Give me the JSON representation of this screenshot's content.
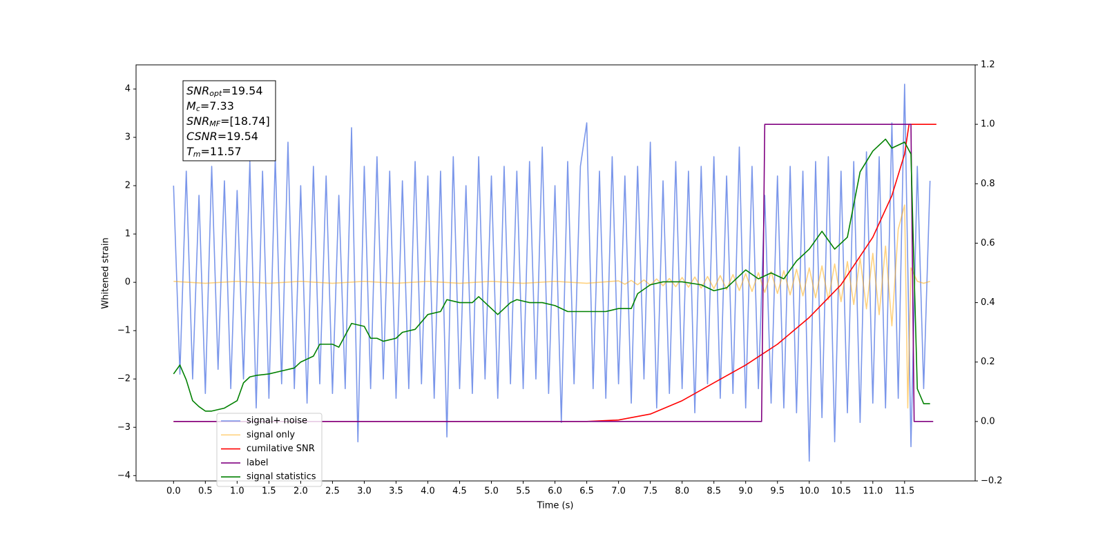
{
  "chart_data": {
    "type": "line",
    "x_label": "Time (s)",
    "y_label": "Whitened strain",
    "xlim": [
      -0.59,
      12.61
    ],
    "ylim": [
      -4.11,
      4.5
    ],
    "y2lim": [
      -0.2,
      1.2
    ],
    "xticks": [
      {
        "value": 0,
        "label": "0.0"
      },
      0.5,
      {
        "value": 1,
        "label": "1.0"
      },
      1.5,
      {
        "value": 2,
        "label": "2.0"
      },
      2.5,
      {
        "value": 3,
        "label": "3.0"
      },
      3.5,
      {
        "value": 4,
        "label": "4.0"
      },
      4.5,
      {
        "value": 5,
        "label": "5.0"
      },
      5.5,
      {
        "value": 6,
        "label": "6.0"
      },
      6.5,
      {
        "value": 7,
        "label": "7.0"
      },
      7.5,
      {
        "value": 8,
        "label": "8.0"
      },
      8.5,
      {
        "value": 9,
        "label": "9.0"
      },
      9.5,
      {
        "value": 10,
        "label": "10.0"
      },
      10.5,
      {
        "value": 11,
        "label": "11.0"
      },
      11.5
    ],
    "yticks": [
      {
        "value": -4,
        "label": "−4"
      },
      {
        "value": -3,
        "label": "−3"
      },
      {
        "value": -2,
        "label": "−2"
      },
      {
        "value": -1,
        "label": "−1"
      },
      0,
      1,
      2,
      3,
      4
    ],
    "y2ticks": [
      {
        "value": -0.2,
        "label": "−0.2"
      },
      {
        "value": 0,
        "label": "0.0"
      },
      0.2,
      0.4,
      0.6,
      0.8,
      {
        "value": 1,
        "label": "1.0"
      },
      1.2
    ],
    "legend": "lower left",
    "annotations": [
      {
        "main": "SNR",
        "sub": "opt",
        "rest": "=19.54"
      },
      {
        "main": "M",
        "sub": "c",
        "rest": "=7.33"
      },
      {
        "main": "SNR",
        "sub": "MF",
        "rest": "=[18.74]"
      },
      {
        "main": "CSNR",
        "sub": "",
        "rest": "=19.54"
      },
      {
        "main": "T",
        "sub": "m",
        "rest": "=11.57"
      }
    ],
    "series": [
      {
        "name": "signal+ noise",
        "color": "#4169e1",
        "alpha": 0.7,
        "x": [
          0,
          0.1,
          0.2,
          0.3,
          0.4,
          0.5,
          0.6,
          0.7,
          0.8,
          0.9,
          1,
          1.1,
          1.2,
          1.3,
          1.4,
          1.5,
          1.6,
          1.7,
          1.8,
          1.9,
          2,
          2.1,
          2.2,
          2.3,
          2.4,
          2.5,
          2.6,
          2.7,
          2.8,
          2.9,
          3,
          3.1,
          3.2,
          3.3,
          3.4,
          3.5,
          3.6,
          3.7,
          3.8,
          3.9,
          4,
          4.1,
          4.2,
          4.3,
          4.4,
          4.5,
          4.6,
          4.7,
          4.8,
          4.9,
          5,
          5.1,
          5.2,
          5.3,
          5.4,
          5.5,
          5.6,
          5.7,
          5.8,
          5.9,
          6,
          6.1,
          6.2,
          6.3,
          6.4,
          6.5,
          6.6,
          6.7,
          6.8,
          6.9,
          7,
          7.1,
          7.2,
          7.3,
          7.4,
          7.5,
          7.6,
          7.7,
          7.8,
          7.9,
          8,
          8.1,
          8.2,
          8.3,
          8.4,
          8.5,
          8.6,
          8.7,
          8.8,
          8.9,
          9,
          9.1,
          9.2,
          9.3,
          9.4,
          9.5,
          9.6,
          9.7,
          9.8,
          9.9,
          10,
          10.1,
          10.2,
          10.3,
          10.4,
          10.5,
          10.6,
          10.7,
          10.8,
          10.9,
          11,
          11.1,
          11.2,
          11.3,
          11.4,
          11.5,
          11.6,
          11.7,
          11.8,
          11.9
        ],
        "values": [
          2.0,
          -1.9,
          2.3,
          -2.0,
          1.8,
          -2.3,
          2.4,
          -1.8,
          2.1,
          -2.2,
          1.9,
          -2.0,
          2.5,
          -2.6,
          2.3,
          -2.4,
          2.6,
          -2.1,
          2.9,
          -2.2,
          2.0,
          -2.5,
          2.4,
          -2.1,
          2.2,
          -2.3,
          1.8,
          -2.2,
          3.2,
          -3.3,
          2.4,
          -2.2,
          2.6,
          -2.0,
          2.3,
          -2.4,
          2.1,
          -2.2,
          2.5,
          -2.1,
          2.2,
          -2.4,
          2.3,
          -3.2,
          2.6,
          -2.2,
          2.0,
          -2.3,
          2.6,
          -2.0,
          2.2,
          -2.4,
          2.4,
          -2.1,
          2.3,
          -2.2,
          2.5,
          -2.0,
          2.8,
          -2.3,
          2.0,
          -2.9,
          2.5,
          -2.1,
          2.4,
          3.3,
          -2.2,
          2.3,
          -2.4,
          2.6,
          -2.1,
          2.2,
          -2.5,
          2.4,
          -2.0,
          2.9,
          -2.6,
          2.1,
          -2.3,
          2.5,
          -2.2,
          2.3,
          -2.7,
          2.4,
          -2.1,
          2.6,
          -2.4,
          2.2,
          -2.3,
          2.8,
          -2.6,
          2.4,
          -2.2,
          1.8,
          -2.5,
          2.2,
          -2.6,
          2.4,
          -2.7,
          2.3,
          -3.7,
          2.5,
          -2.8,
          2.6,
          -3.3,
          2.3,
          -2.7,
          2.5,
          -2.9,
          2.7,
          -2.5,
          2.6,
          -2.6,
          3.3,
          -2.4,
          4.1,
          -3.4,
          2.4,
          -2.2,
          2.1
        ]
      },
      {
        "name": "signal only",
        "color": "#ffa500",
        "alpha": 0.5,
        "x": [
          0,
          0.5,
          1,
          1.5,
          2,
          2.5,
          3,
          3.5,
          4,
          4.5,
          5,
          5.5,
          6,
          6.5,
          7,
          7.1,
          7.2,
          7.3,
          7.4,
          7.5,
          7.6,
          7.7,
          7.8,
          7.9,
          8,
          8.1,
          8.2,
          8.3,
          8.4,
          8.5,
          8.6,
          8.7,
          8.8,
          8.9,
          9,
          9.1,
          9.2,
          9.3,
          9.4,
          9.5,
          9.6,
          9.7,
          9.8,
          9.9,
          10,
          10.1,
          10.2,
          10.3,
          10.4,
          10.5,
          10.6,
          10.7,
          10.8,
          10.9,
          11,
          11.1,
          11.2,
          11.3,
          11.4,
          11.5,
          11.55,
          11.6,
          11.7,
          11.8,
          11.9
        ],
        "values": [
          0.02,
          -0.02,
          0.02,
          -0.02,
          0.02,
          -0.02,
          0.02,
          -0.02,
          0.02,
          -0.02,
          0.02,
          -0.02,
          0.02,
          -0.02,
          0.03,
          -0.04,
          0.04,
          -0.05,
          0.05,
          -0.06,
          0.07,
          -0.07,
          0.08,
          -0.09,
          0.1,
          -0.1,
          0.11,
          -0.12,
          0.12,
          -0.13,
          0.14,
          -0.15,
          0.16,
          -0.17,
          0.18,
          -0.19,
          0.2,
          -0.21,
          0.22,
          -0.23,
          0.24,
          -0.26,
          0.27,
          -0.28,
          0.3,
          -0.32,
          0.34,
          -0.36,
          0.38,
          -0.4,
          0.43,
          -0.46,
          0.5,
          -0.55,
          0.6,
          -0.67,
          0.75,
          -0.9,
          1.1,
          1.6,
          -2.6,
          0.3,
          0.02,
          -0.02,
          0.02
        ]
      },
      {
        "name": "cumilative SNR",
        "color": "#ff0000",
        "axis": "y2",
        "x": [
          0,
          6.5,
          7.0,
          7.5,
          8.0,
          8.5,
          9.0,
          9.5,
          10.0,
          10.5,
          11.0,
          11.3,
          11.5,
          11.57,
          12.0
        ],
        "values": [
          0,
          0,
          0.005,
          0.025,
          0.07,
          0.13,
          0.19,
          0.26,
          0.35,
          0.46,
          0.62,
          0.76,
          0.9,
          1.0,
          1.0
        ]
      },
      {
        "name": "label",
        "color": "#800080",
        "axis": "y2",
        "x": [
          0,
          9.25,
          9.3,
          11.6,
          11.65,
          11.95
        ],
        "values": [
          0,
          0,
          1,
          1,
          0,
          0
        ]
      },
      {
        "name": "signal statistics",
        "color": "#008000",
        "axis": "y2",
        "x": [
          0,
          0.1,
          0.2,
          0.3,
          0.4,
          0.5,
          0.6,
          0.8,
          1.0,
          1.1,
          1.2,
          1.3,
          1.5,
          1.7,
          1.9,
          2.0,
          2.2,
          2.3,
          2.5,
          2.6,
          2.7,
          2.8,
          3.0,
          3.1,
          3.2,
          3.3,
          3.5,
          3.6,
          3.8,
          4.0,
          4.2,
          4.3,
          4.5,
          4.7,
          4.8,
          5.0,
          5.1,
          5.3,
          5.4,
          5.6,
          5.8,
          6.0,
          6.2,
          6.5,
          6.8,
          7.0,
          7.2,
          7.3,
          7.5,
          7.7,
          8.0,
          8.3,
          8.5,
          8.7,
          8.8,
          9.0,
          9.2,
          9.4,
          9.6,
          9.8,
          10.0,
          10.2,
          10.3,
          10.4,
          10.6,
          10.8,
          11.0,
          11.2,
          11.3,
          11.5,
          11.6,
          11.65,
          11.7,
          11.8,
          11.9
        ],
        "values": [
          0.16,
          0.19,
          0.14,
          0.07,
          0.05,
          0.035,
          0.035,
          0.045,
          0.07,
          0.13,
          0.15,
          0.155,
          0.16,
          0.17,
          0.18,
          0.2,
          0.22,
          0.26,
          0.26,
          0.25,
          0.29,
          0.33,
          0.32,
          0.28,
          0.28,
          0.27,
          0.28,
          0.3,
          0.31,
          0.36,
          0.37,
          0.41,
          0.4,
          0.4,
          0.42,
          0.38,
          0.36,
          0.4,
          0.41,
          0.4,
          0.4,
          0.39,
          0.37,
          0.37,
          0.37,
          0.38,
          0.38,
          0.43,
          0.46,
          0.47,
          0.47,
          0.46,
          0.44,
          0.45,
          0.47,
          0.51,
          0.48,
          0.5,
          0.48,
          0.54,
          0.58,
          0.64,
          0.61,
          0.58,
          0.62,
          0.84,
          0.91,
          0.95,
          0.92,
          0.94,
          0.9,
          0.5,
          0.11,
          0.06,
          0.06
        ]
      }
    ]
  }
}
